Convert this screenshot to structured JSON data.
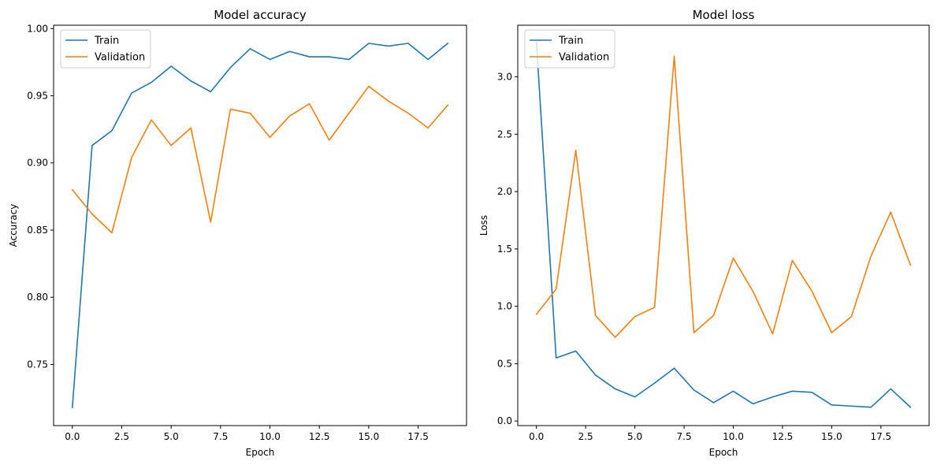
{
  "chart_data": [
    {
      "type": "line",
      "title": "Model accuracy",
      "xlabel": "Epoch",
      "ylabel": "Accuracy",
      "x": [
        0,
        1,
        2,
        3,
        4,
        5,
        6,
        7,
        8,
        9,
        10,
        11,
        12,
        13,
        14,
        15,
        16,
        17,
        18,
        19
      ],
      "xlim": [
        -0.95,
        19.95
      ],
      "ylim": [
        0.7045,
        1.0025
      ],
      "xticks": [
        0.0,
        2.5,
        5.0,
        7.5,
        10.0,
        12.5,
        15.0,
        17.5
      ],
      "xtick_labels": [
        "0.0",
        "2.5",
        "5.0",
        "7.5",
        "10.0",
        "12.5",
        "15.0",
        "17.5"
      ],
      "yticks": [
        0.75,
        0.8,
        0.85,
        0.9,
        0.95,
        1.0
      ],
      "ytick_labels": [
        "0.75",
        "0.80",
        "0.85",
        "0.90",
        "0.95",
        "1.00"
      ],
      "grid": false,
      "legend": "upper left",
      "series": [
        {
          "name": "Train",
          "color": "#1f77b4",
          "values": [
            0.718,
            0.913,
            0.924,
            0.952,
            0.96,
            0.972,
            0.961,
            0.953,
            0.971,
            0.985,
            0.977,
            0.983,
            0.979,
            0.979,
            0.977,
            0.989,
            0.987,
            0.989,
            0.977,
            0.989
          ]
        },
        {
          "name": "Validation",
          "color": "#ff7f0e",
          "values": [
            0.88,
            0.862,
            0.848,
            0.904,
            0.932,
            0.913,
            0.926,
            0.856,
            0.94,
            0.937,
            0.919,
            0.935,
            0.944,
            0.917,
            0.937,
            0.957,
            0.946,
            0.937,
            0.926,
            0.943
          ]
        }
      ]
    },
    {
      "type": "line",
      "title": "Model loss",
      "xlabel": "Epoch",
      "ylabel": "Loss",
      "x": [
        0,
        1,
        2,
        3,
        4,
        5,
        6,
        7,
        8,
        9,
        10,
        11,
        12,
        13,
        14,
        15,
        16,
        17,
        18,
        19
      ],
      "xlim": [
        -0.95,
        19.95
      ],
      "ylim": [
        -0.04,
        3.45
      ],
      "xticks": [
        0.0,
        2.5,
        5.0,
        7.5,
        10.0,
        12.5,
        15.0,
        17.5
      ],
      "xtick_labels": [
        "0.0",
        "2.5",
        "5.0",
        "7.5",
        "10.0",
        "12.5",
        "15.0",
        "17.5"
      ],
      "yticks": [
        0.0,
        0.5,
        1.0,
        1.5,
        2.0,
        2.5,
        3.0
      ],
      "ytick_labels": [
        "0.0",
        "0.5",
        "1.0",
        "1.5",
        "2.0",
        "2.5",
        "3.0"
      ],
      "grid": false,
      "legend": "upper left",
      "series": [
        {
          "name": "Train",
          "color": "#1f77b4",
          "values": [
            3.3,
            0.55,
            0.61,
            0.4,
            0.28,
            0.21,
            0.33,
            0.46,
            0.27,
            0.16,
            0.26,
            0.15,
            0.21,
            0.26,
            0.25,
            0.14,
            0.13,
            0.12,
            0.28,
            0.12
          ]
        },
        {
          "name": "Validation",
          "color": "#ff7f0e",
          "values": [
            0.93,
            1.15,
            2.36,
            0.92,
            0.73,
            0.91,
            0.99,
            3.18,
            0.77,
            0.92,
            1.42,
            1.13,
            0.76,
            1.4,
            1.13,
            0.77,
            0.91,
            1.44,
            1.82,
            1.36
          ]
        }
      ]
    }
  ]
}
